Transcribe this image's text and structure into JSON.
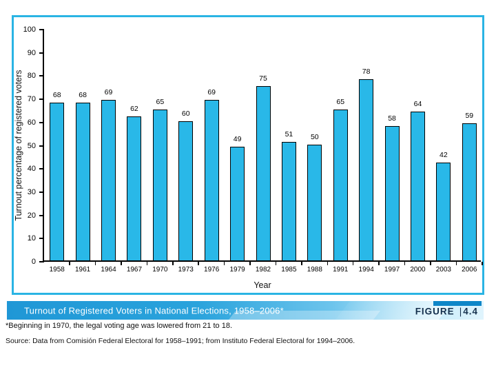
{
  "figure": {
    "caption_title": "Turnout of Registered Voters in National Elections, 1958–2006*",
    "figure_label": "FIGURE",
    "figure_separator": "|",
    "figure_number": "4.4",
    "footnote": "*Beginning in 1970, the legal voting age was lowered from 21 to 18.",
    "source": "Source: Data from Comisión Federal Electoral for 1958–1991; from Instituto Federal Electoral for 1994–2006."
  },
  "colors": {
    "bar_fill": "#29b8e8",
    "bar_border": "#000000",
    "panel_border": "#2ab4e4",
    "band_dark_blue": "#1f97d6",
    "band_light_blue": "#e0f4fd",
    "band_top_strip": "#0e86c8",
    "figure_text": "#15304d",
    "caption_text": "#ffffff"
  },
  "chart_data": {
    "type": "bar",
    "categories": [
      "1958",
      "1961",
      "1964",
      "1967",
      "1970",
      "1973",
      "1976",
      "1979",
      "1982",
      "1985",
      "1988",
      "1991",
      "1994",
      "1997",
      "2000",
      "2003",
      "2006"
    ],
    "values": [
      68,
      68,
      69,
      62,
      65,
      60,
      69,
      49,
      75,
      51,
      50,
      65,
      78,
      58,
      64,
      42,
      59
    ],
    "title": "Turnout of Registered Voters in National Elections, 1958–2006*",
    "xlabel": "Year",
    "ylabel": "Turnout percentage of registered voters",
    "ylim": [
      0,
      100
    ],
    "ytick_step": 10,
    "grid": false,
    "legend": "none",
    "value_labels": true
  }
}
